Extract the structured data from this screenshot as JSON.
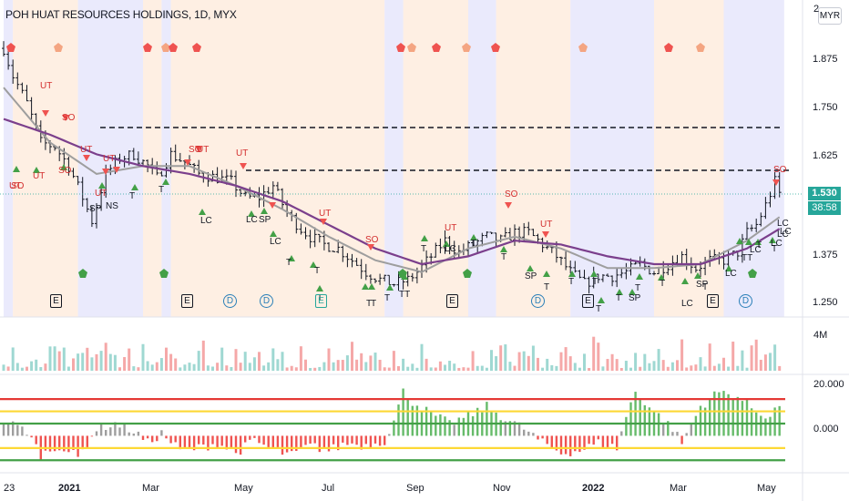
{
  "window": {
    "title": "POH HUAT RESOURCES HOLDINGS, 1D, MYX",
    "currency_button": "MYR"
  },
  "price_scale": {
    "ticks": [
      "1.875",
      "1.750",
      "1.625",
      "1.375",
      "1.250"
    ],
    "top_partial": "2",
    "current_price": "1.530",
    "countdown": "38:58"
  },
  "volume_scale": {
    "label": "4M"
  },
  "oscillator_scale": {
    "ticks": [
      "20.000",
      "0.000"
    ]
  },
  "time_axis": {
    "labels": [
      "23",
      "2021",
      "Mar",
      "May",
      "Jul",
      "Sep",
      "Nov",
      "2022",
      "Mar",
      "May"
    ],
    "bold": [
      "2021",
      "2022"
    ]
  },
  "signals": {
    "labels": [
      "UT",
      "SO",
      "UT",
      "SO",
      "UT",
      "UT",
      "UT",
      "SO",
      "SO",
      "SO",
      "UT",
      "UT",
      "UT",
      "UT",
      "SO",
      "UT",
      "SO",
      "UT",
      "SP",
      "NS",
      "T",
      "T",
      "LC",
      "LC",
      "SP",
      "LC",
      "T",
      "T",
      "T",
      "T",
      "T",
      "T",
      "TT",
      "T",
      "LC",
      "T",
      "T",
      "SP",
      "T",
      "T",
      "T",
      "T",
      "T",
      "SP",
      "T",
      "T",
      "LC",
      "SP",
      "T",
      "LC",
      "TT",
      "LC",
      "T",
      "LC",
      "LC",
      "LC",
      "T",
      "LC"
    ]
  },
  "events": [
    "E",
    "E",
    "D",
    "D",
    "E",
    "E",
    "D",
    "E",
    "E",
    "D"
  ],
  "colors": {
    "up_candle": "#26a69a",
    "down_candle": "#ef5350",
    "bar_color": "#131722",
    "ma_fast": "#9e9e9e",
    "ma_slow": "#7b3f8c",
    "zone_peach": "#fde9d9",
    "zone_lavender": "#e3e3fb",
    "osc_red_line": "#e53935",
    "osc_yellow_line": "#fdd835",
    "osc_green_line": "#43a047"
  },
  "chart_data": {
    "type": "candlestick",
    "title": "POH HUAT RESOURCES HOLDINGS, 1D, MYX",
    "currency": "MYR",
    "price_axis": {
      "range": [
        1.22,
        2.0
      ],
      "ticks": [
        1.25,
        1.375,
        1.625,
        1.75,
        1.875
      ]
    },
    "current_price": 1.53,
    "resistance_levels": [
      1.69,
      1.6
    ],
    "close_path": [
      [
        0,
        1.9
      ],
      [
        2,
        1.83
      ],
      [
        5,
        1.76
      ],
      [
        8,
        1.66
      ],
      [
        11,
        1.65
      ],
      [
        14,
        1.6
      ],
      [
        17,
        1.52
      ],
      [
        19,
        1.46
      ],
      [
        22,
        1.58
      ],
      [
        25,
        1.62
      ],
      [
        28,
        1.63
      ],
      [
        31,
        1.6
      ],
      [
        33,
        1.57
      ],
      [
        36,
        1.63
      ],
      [
        39,
        1.61
      ],
      [
        42,
        1.58
      ],
      [
        46,
        1.57
      ],
      [
        49,
        1.56
      ],
      [
        52,
        1.52
      ],
      [
        55,
        1.52
      ],
      [
        58,
        1.55
      ],
      [
        61,
        1.48
      ],
      [
        64,
        1.44
      ],
      [
        66,
        1.42
      ],
      [
        69,
        1.4
      ],
      [
        72,
        1.39
      ],
      [
        75,
        1.36
      ],
      [
        78,
        1.33
      ],
      [
        81,
        1.31
      ],
      [
        84,
        1.3
      ],
      [
        87,
        1.31
      ],
      [
        89,
        1.33
      ],
      [
        92,
        1.37
      ],
      [
        95,
        1.41
      ],
      [
        98,
        1.38
      ],
      [
        101,
        1.4
      ],
      [
        104,
        1.42
      ],
      [
        107,
        1.41
      ],
      [
        110,
        1.43
      ],
      [
        113,
        1.43
      ],
      [
        116,
        1.4
      ],
      [
        119,
        1.37
      ],
      [
        122,
        1.33
      ],
      [
        125,
        1.3
      ],
      [
        128,
        1.32
      ],
      [
        131,
        1.32
      ],
      [
        134,
        1.33
      ],
      [
        137,
        1.35
      ],
      [
        140,
        1.33
      ],
      [
        143,
        1.35
      ],
      [
        146,
        1.37
      ],
      [
        149,
        1.34
      ],
      [
        152,
        1.36
      ],
      [
        155,
        1.36
      ],
      [
        158,
        1.38
      ],
      [
        160,
        1.43
      ],
      [
        162,
        1.45
      ],
      [
        164,
        1.5
      ],
      [
        166,
        1.56
      ],
      [
        167,
        1.53
      ]
    ],
    "ma_fast_path": [
      [
        0,
        1.8
      ],
      [
        10,
        1.66
      ],
      [
        20,
        1.58
      ],
      [
        30,
        1.6
      ],
      [
        40,
        1.6
      ],
      [
        50,
        1.55
      ],
      [
        60,
        1.49
      ],
      [
        70,
        1.42
      ],
      [
        80,
        1.36
      ],
      [
        90,
        1.33
      ],
      [
        100,
        1.39
      ],
      [
        110,
        1.42
      ],
      [
        120,
        1.39
      ],
      [
        130,
        1.34
      ],
      [
        140,
        1.34
      ],
      [
        150,
        1.35
      ],
      [
        160,
        1.41
      ],
      [
        167,
        1.47
      ]
    ],
    "ma_slow_path": [
      [
        0,
        1.72
      ],
      [
        10,
        1.68
      ],
      [
        20,
        1.63
      ],
      [
        30,
        1.6
      ],
      [
        40,
        1.58
      ],
      [
        50,
        1.55
      ],
      [
        60,
        1.51
      ],
      [
        70,
        1.45
      ],
      [
        80,
        1.39
      ],
      [
        90,
        1.35
      ],
      [
        100,
        1.37
      ],
      [
        110,
        1.41
      ],
      [
        120,
        1.4
      ],
      [
        130,
        1.37
      ],
      [
        140,
        1.35
      ],
      [
        150,
        1.35
      ],
      [
        160,
        1.39
      ],
      [
        167,
        1.44
      ]
    ],
    "oscillator": {
      "axis_range": [
        -14,
        24
      ],
      "ticks": [
        20,
        0
      ],
      "levels": [
        {
          "value": 15,
          "color": "red"
        },
        {
          "value": 10,
          "color": "yellow"
        },
        {
          "value": 5,
          "color": "green"
        },
        {
          "value": -5,
          "color": "yellow"
        },
        {
          "value": -10,
          "color": "green"
        }
      ],
      "path": [
        [
          0,
          6
        ],
        [
          5,
          2
        ],
        [
          8,
          -8
        ],
        [
          12,
          -4
        ],
        [
          16,
          -9
        ],
        [
          20,
          3
        ],
        [
          24,
          5
        ],
        [
          28,
          2
        ],
        [
          31,
          -3
        ],
        [
          34,
          1
        ],
        [
          38,
          -6
        ],
        [
          42,
          -5
        ],
        [
          46,
          -3
        ],
        [
          50,
          -7
        ],
        [
          54,
          -2
        ],
        [
          58,
          -6
        ],
        [
          62,
          -8
        ],
        [
          66,
          -4
        ],
        [
          70,
          -6
        ],
        [
          74,
          -3
        ],
        [
          78,
          -4
        ],
        [
          82,
          -2
        ],
        [
          84,
          6
        ],
        [
          86,
          18
        ],
        [
          88,
          14
        ],
        [
          92,
          9
        ],
        [
          96,
          5
        ],
        [
          100,
          8
        ],
        [
          104,
          12
        ],
        [
          108,
          7
        ],
        [
          112,
          3
        ],
        [
          116,
          -3
        ],
        [
          120,
          -7
        ],
        [
          124,
          -6
        ],
        [
          128,
          -3
        ],
        [
          132,
          -5
        ],
        [
          134,
          8
        ],
        [
          136,
          18
        ],
        [
          140,
          10
        ],
        [
          144,
          3
        ],
        [
          146,
          -3
        ],
        [
          150,
          12
        ],
        [
          154,
          18
        ],
        [
          158,
          16
        ],
        [
          162,
          10
        ],
        [
          165,
          8
        ],
        [
          167,
          13
        ]
      ]
    },
    "zones": [
      {
        "from": 0,
        "to": 2,
        "color": "lavender"
      },
      {
        "from": 2,
        "to": 16,
        "color": "peach"
      },
      {
        "from": 16,
        "to": 30,
        "color": "lavender"
      },
      {
        "from": 30,
        "to": 34,
        "color": "peach"
      },
      {
        "from": 34,
        "to": 36,
        "color": "lavender"
      },
      {
        "from": 36,
        "to": 82,
        "color": "peach"
      },
      {
        "from": 82,
        "to": 86,
        "color": "lavender"
      },
      {
        "from": 86,
        "to": 100,
        "color": "peach"
      },
      {
        "from": 100,
        "to": 106,
        "color": "lavender"
      },
      {
        "from": 106,
        "to": 122,
        "color": "peach"
      },
      {
        "from": 122,
        "to": 140,
        "color": "lavender"
      },
      {
        "from": 140,
        "to": 155,
        "color": "peach"
      },
      {
        "from": 155,
        "to": 168,
        "color": "lavender"
      }
    ]
  }
}
